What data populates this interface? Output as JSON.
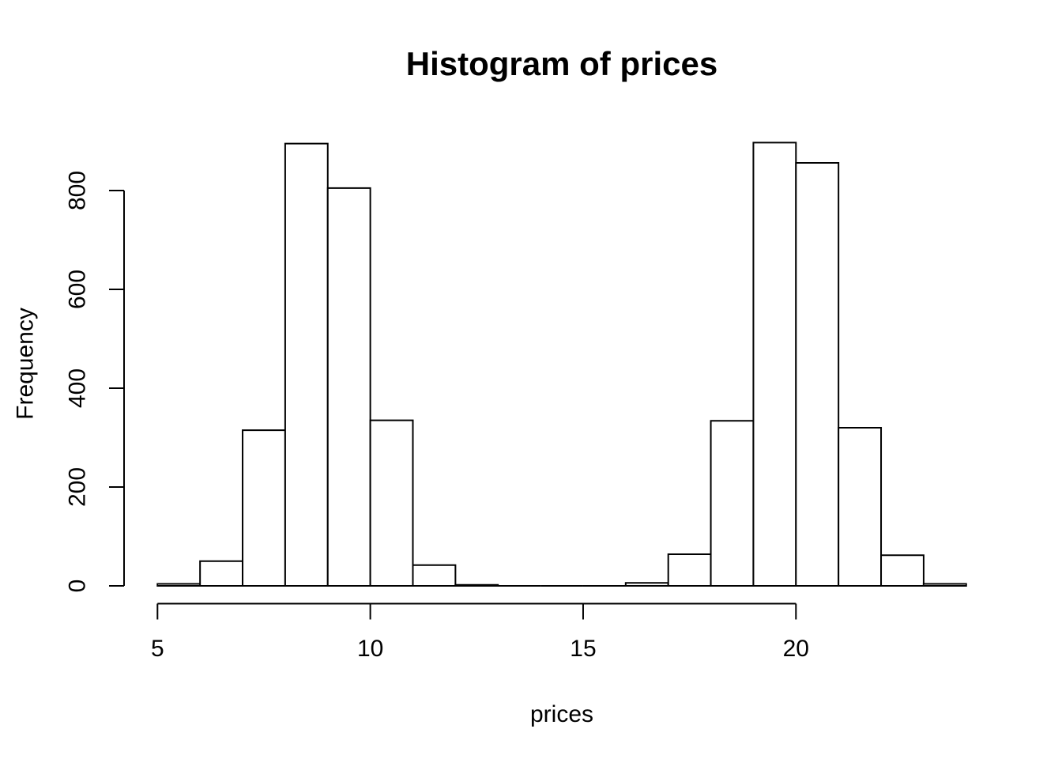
{
  "chart": {
    "title": "Histogram of prices",
    "xlabel": "prices",
    "ylabel": "Frequency"
  },
  "colors": {
    "background": "#ffffff",
    "bar_fill": "#ffffff",
    "bar_border": "#000000",
    "axis": "#000000",
    "text": "#000000"
  },
  "chart_data": {
    "type": "bar",
    "subtype": "histogram",
    "title": "Histogram of prices",
    "xlabel": "prices",
    "ylabel": "Frequency",
    "bin_edges": [
      5,
      6,
      7,
      8,
      9,
      10,
      11,
      12,
      13,
      14,
      15,
      16,
      17,
      18,
      19,
      20,
      21,
      22,
      23,
      24
    ],
    "counts": [
      4,
      50,
      315,
      895,
      805,
      335,
      42,
      2,
      0,
      0,
      0,
      6,
      64,
      334,
      897,
      856,
      320,
      62,
      4
    ],
    "x_ticks": [
      5,
      10,
      15,
      20
    ],
    "y_ticks": [
      0,
      200,
      400,
      600,
      800
    ],
    "xlim": [
      5,
      24
    ],
    "ylim": [
      0,
      900
    ],
    "grid": false,
    "legend": null
  }
}
